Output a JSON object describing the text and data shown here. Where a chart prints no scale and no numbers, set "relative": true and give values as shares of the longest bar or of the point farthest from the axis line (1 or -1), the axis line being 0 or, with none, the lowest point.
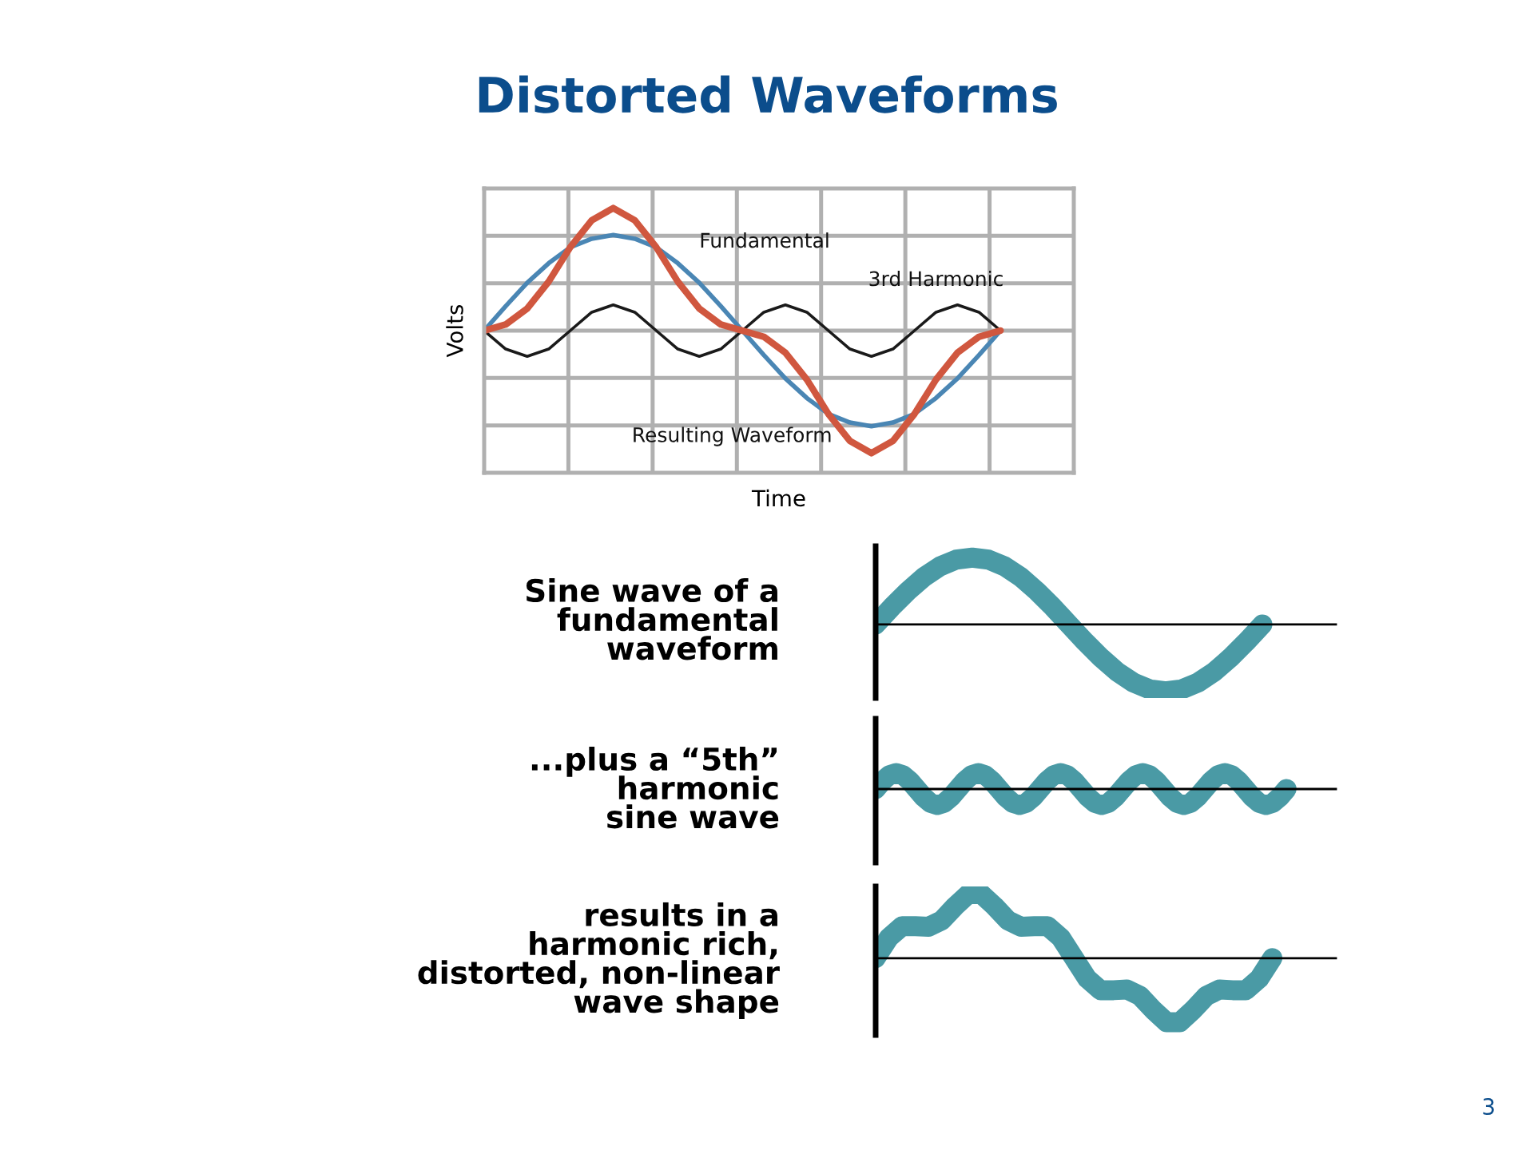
{
  "chart_data": [
    {
      "type": "line",
      "title": "Distorted Waveforms",
      "xlabel": "Time",
      "ylabel": "Volts",
      "relative": true,
      "grid": true,
      "categories": [
        null,
        null,
        null,
        null,
        null,
        null,
        null,
        null,
        null,
        null,
        null,
        null,
        null,
        null,
        null,
        null,
        null,
        null,
        null,
        null,
        null,
        null,
        null,
        null,
        null
      ],
      "series": [
        {
          "name": "Fundamental",
          "color": "#4a86b4",
          "values": [
            0,
            0.2,
            0.39,
            0.55,
            0.68,
            0.75,
            0.78,
            0.75,
            0.68,
            0.55,
            0.39,
            0.2,
            0,
            -0.2,
            -0.39,
            -0.55,
            -0.68,
            -0.75,
            -0.78,
            -0.75,
            -0.68,
            -0.55,
            -0.39,
            -0.2,
            0
          ]
        },
        {
          "name": "3rd Harmonic",
          "color": "#1a1a1a",
          "values": [
            0,
            -0.15,
            -0.21,
            -0.15,
            0,
            0.15,
            0.21,
            0.15,
            0,
            -0.15,
            -0.21,
            -0.15,
            0,
            0.15,
            0.21,
            0.15,
            0,
            -0.15,
            -0.21,
            -0.15,
            0,
            0.15,
            0.21,
            0.15,
            0
          ]
        },
        {
          "name": "Resulting Waveform",
          "color": "#d0573f",
          "values": [
            0,
            0.05,
            0.18,
            0.4,
            0.68,
            0.9,
            1,
            0.9,
            0.68,
            0.4,
            0.18,
            0.05,
            0,
            -0.05,
            -0.18,
            -0.4,
            -0.68,
            -0.9,
            -1,
            -0.9,
            -0.68,
            -0.4,
            -0.18,
            -0.05,
            0
          ]
        }
      ],
      "annotations": [
        "3"
      ]
    },
    {
      "type": "line",
      "title": "Sine wave of a\nfundamental\nwaveform",
      "relative": true,
      "categories": [
        null,
        null,
        null,
        null,
        null,
        null,
        null,
        null,
        null,
        null,
        null,
        null,
        null,
        null,
        null,
        null,
        null,
        null,
        null,
        null,
        null,
        null,
        null,
        null,
        null
      ],
      "series": [
        {
          "color": "#4a9aa5",
          "values": [
            0,
            0.26,
            0.5,
            0.71,
            0.87,
            0.97,
            1,
            0.97,
            0.87,
            0.71,
            0.5,
            0.26,
            0,
            -0.26,
            -0.5,
            -0.71,
            -0.87,
            -0.97,
            -1,
            -0.97,
            -0.87,
            -0.71,
            -0.5,
            -0.26,
            0
          ]
        }
      ]
    },
    {
      "type": "line",
      "title": "...plus a “5th”\nharmonic\nsine wave",
      "relative": true,
      "categories": [
        null,
        null,
        null,
        null,
        null,
        null,
        null,
        null,
        null,
        null,
        null,
        null,
        null,
        null,
        null,
        null,
        null,
        null,
        null,
        null,
        null,
        null,
        null,
        null,
        null,
        null,
        null,
        null,
        null,
        null,
        null,
        null,
        null,
        null,
        null,
        null,
        null,
        null,
        null,
        null,
        null,
        null,
        null,
        null,
        null,
        null,
        null,
        null,
        null,
        null,
        null,
        null,
        null,
        null,
        null,
        null,
        null,
        null,
        null,
        null,
        null
      ],
      "series": [
        {
          "color": "#4a9aa5",
          "values": [
            0,
            0.5,
            0.87,
            1,
            0.87,
            0.5,
            0,
            -0.5,
            -0.87,
            -1,
            -0.87,
            -0.5,
            0,
            0.5,
            0.87,
            1,
            0.87,
            0.5,
            0,
            -0.5,
            -0.87,
            -1,
            -0.87,
            -0.5,
            0,
            0.5,
            0.87,
            1,
            0.87,
            0.5,
            0,
            -0.5,
            -0.87,
            -1,
            -0.87,
            -0.5,
            0,
            0.5,
            0.87,
            1,
            0.87,
            0.5,
            0,
            -0.5,
            -0.87,
            -1,
            -0.87,
            -0.5,
            0,
            0.5,
            0.87,
            1,
            0.87,
            0.5,
            0,
            -0.5,
            -0.87,
            -1,
            -0.87,
            -0.5,
            0
          ]
        }
      ]
    },
    {
      "type": "line",
      "title": "results in a\nharmonic rich,\ndistorted, non-linear\nwave shape",
      "relative": true,
      "categories": [
        null,
        null,
        null,
        null,
        null,
        null,
        null,
        null,
        null,
        null,
        null,
        null,
        null,
        null,
        null,
        null,
        null,
        null,
        null,
        null,
        null,
        null,
        null,
        null,
        null,
        null,
        null,
        null,
        null,
        null,
        null
      ],
      "series": [
        {
          "color": "#4a9aa5",
          "values": [
            0,
            0.32,
            0.5,
            0.5,
            0.49,
            0.59,
            0.81,
            1,
            1,
            0.81,
            0.59,
            0.49,
            0.5,
            0.5,
            0.32,
            0,
            -0.32,
            -0.5,
            -0.5,
            -0.49,
            -0.59,
            -0.81,
            -1,
            -1,
            -0.81,
            -0.59,
            -0.49,
            -0.5,
            -0.5,
            -0.32,
            0
          ]
        }
      ]
    }
  ]
}
